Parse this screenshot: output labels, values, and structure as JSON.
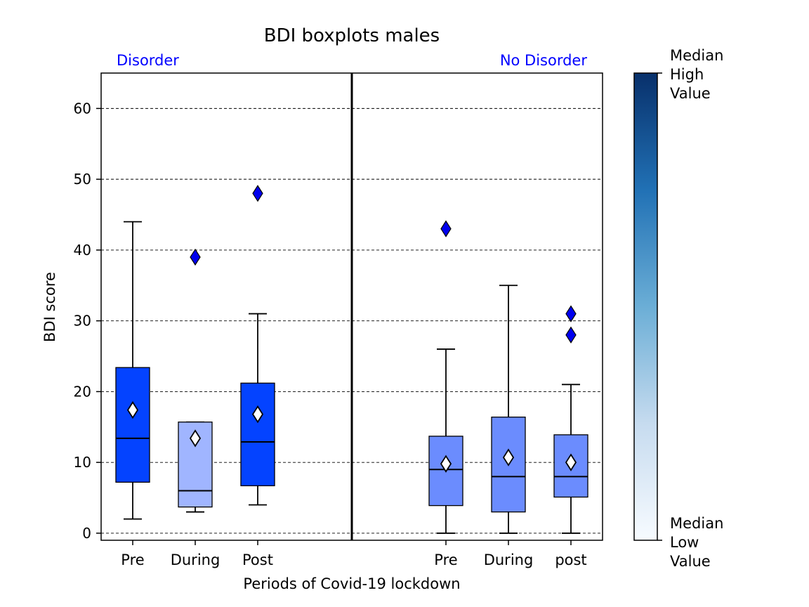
{
  "chart_data": {
    "type": "box",
    "title": "BDI boxplots males",
    "xlabel": "Periods of Covid-19 lockdown",
    "ylabel": "BDI score",
    "ylim": [
      -1,
      65
    ],
    "yticks": [
      0,
      10,
      20,
      30,
      40,
      50,
      60
    ],
    "grid": "horizontal dashed",
    "groups": [
      {
        "label": "Disorder",
        "color": "#0000ff",
        "boxes": [
          {
            "category": "Pre",
            "whisker_low": 2,
            "q1": 7.2,
            "median": 13.4,
            "q3": 23.4,
            "whisker_high": 44,
            "mean": 17.4,
            "outliers": [],
            "color": "#0443ff"
          },
          {
            "category": "During",
            "whisker_low": 3,
            "q1": 3.7,
            "median": 6,
            "q3": 15.7,
            "whisker_high": 15.7,
            "mean": 13.4,
            "outliers": [
              39
            ],
            "color": "#a0b5ff"
          },
          {
            "category": "Post",
            "whisker_low": 4,
            "q1": 6.7,
            "median": 12.9,
            "q3": 21.2,
            "whisker_high": 31,
            "mean": 16.8,
            "outliers": [
              48
            ],
            "color": "#0443ff"
          }
        ]
      },
      {
        "label": "No Disorder",
        "color": "#0000ff",
        "boxes": [
          {
            "category": "Pre",
            "whisker_low": 0,
            "q1": 3.9,
            "median": 9,
            "q3": 13.7,
            "whisker_high": 26,
            "mean": 9.8,
            "outliers": [
              43
            ],
            "color": "#6b8cfe"
          },
          {
            "category": "During",
            "whisker_low": 0,
            "q1": 3,
            "median": 8,
            "q3": 16.4,
            "whisker_high": 35,
            "mean": 10.7,
            "outliers": [],
            "color": "#6b8cfe"
          },
          {
            "category": "post",
            "whisker_low": 0,
            "q1": 5.1,
            "median": 8,
            "q3": 13.9,
            "whisker_high": 21,
            "mean": 10,
            "outliers": [
              28,
              31
            ],
            "color": "#6b8cfe"
          }
        ]
      }
    ],
    "outlier_color": "#0000ee",
    "mean_color": "#ffffff",
    "colorbar": {
      "top_label": "Median\nHigh\nValue",
      "bottom_label": "Median\nLow\nValue",
      "colors": [
        "#f7fbff",
        "#c6dbef",
        "#6baed6",
        "#2171b5",
        "#08306b"
      ]
    }
  }
}
